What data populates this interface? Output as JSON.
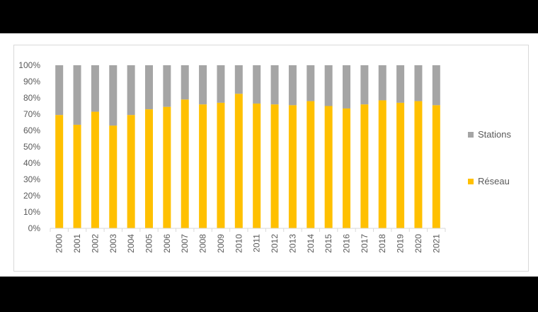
{
  "chart_data": {
    "type": "bar",
    "stacked": true,
    "percent": true,
    "categories": [
      "2000",
      "2001",
      "2002",
      "2003",
      "2004",
      "2005",
      "2006",
      "2007",
      "2008",
      "2009",
      "2010",
      "2011",
      "2012",
      "2013",
      "2014",
      "2015",
      "2016",
      "2017",
      "2018",
      "2019",
      "2020",
      "2021"
    ],
    "series": [
      {
        "name": "Réseau",
        "color": "#ffc000",
        "values": [
          69.5,
          63.5,
          71.5,
          63,
          69.5,
          73,
          74.5,
          79,
          76,
          77,
          82.5,
          76.5,
          76,
          75.5,
          78,
          75,
          73.5,
          76,
          78.5,
          77,
          78,
          75.5
        ]
      },
      {
        "name": "Stations",
        "color": "#a5a5a5",
        "values": [
          30.5,
          36.5,
          28.5,
          37,
          30.5,
          27,
          25.5,
          21,
          24,
          23,
          17.5,
          23.5,
          24,
          24.5,
          22,
          25,
          26.5,
          24,
          21.5,
          23,
          22,
          24.5
        ]
      }
    ],
    "yticks": [
      "0%",
      "10%",
      "20%",
      "30%",
      "40%",
      "50%",
      "60%",
      "70%",
      "80%",
      "90%",
      "100%"
    ],
    "ylim": [
      0,
      100
    ],
    "grid": false,
    "legend_position": "right",
    "title": "",
    "xlabel": "",
    "ylabel": ""
  },
  "legend": {
    "stations_label": "Stations",
    "reseau_label": "Réseau"
  }
}
